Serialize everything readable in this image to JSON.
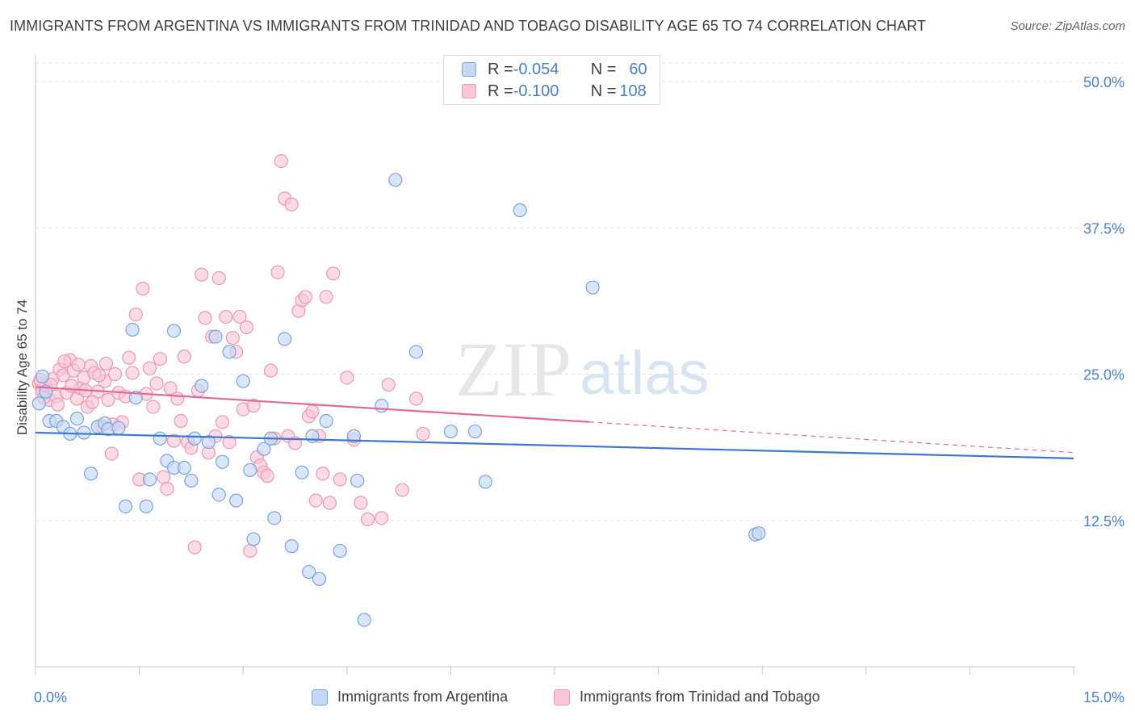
{
  "header": {
    "title": "IMMIGRANTS FROM ARGENTINA VS IMMIGRANTS FROM TRINIDAD AND TOBAGO DISABILITY AGE 65 TO 74 CORRELATION CHART",
    "source": "Source: ZipAtlas.com"
  },
  "watermark": {
    "zip": "ZIP",
    "atlas": "atlas"
  },
  "legend_top": {
    "rows": [
      {
        "r_label": "R = ",
        "r_value": "-0.054",
        "n_label": "N = ",
        "n_value": "60"
      },
      {
        "r_label": "R = ",
        "r_value": "-0.100",
        "n_label": "N = ",
        "n_value": "108"
      }
    ]
  },
  "colors": {
    "argentina_fill": "#c5d9f5",
    "argentina_stroke": "#7aa3dd",
    "argentina_line": "#3b78cf",
    "trinidad_fill": "#f8c8d8",
    "trinidad_stroke": "#ec97b4",
    "trinidad_line": "#e4688f",
    "tick_label": "#4a7fc7",
    "grid": "#dfe3e8"
  },
  "chart_data": {
    "type": "scatter",
    "title": "IMMIGRANTS FROM ARGENTINA VS IMMIGRANTS FROM TRINIDAD AND TOBAGO DISABILITY AGE 65 TO 74 CORRELATION CHART",
    "xlabel": "",
    "ylabel": "Disability Age 65 to 74",
    "xlim": [
      0,
      15
    ],
    "ylim": [
      0,
      52
    ],
    "x_tick_labels": [
      "0.0%",
      "15.0%"
    ],
    "y_ticks": [
      12.5,
      25.0,
      37.5,
      50.0
    ],
    "y_tick_labels": [
      "12.5%",
      "25.0%",
      "37.5%",
      "50.0%"
    ],
    "grid": "horizontal dashed",
    "legend_placement": "top-center",
    "series": [
      {
        "name": "Immigrants from Argentina",
        "r": -0.054,
        "n": 60,
        "trend": {
          "x": [
            0,
            15
          ],
          "y": [
            20.0,
            17.8
          ],
          "dashed_from": null
        },
        "points": [
          [
            0.05,
            22.5
          ],
          [
            0.2,
            21.0
          ],
          [
            0.3,
            21.0
          ],
          [
            0.4,
            20.5
          ],
          [
            0.5,
            19.9
          ],
          [
            0.6,
            21.2
          ],
          [
            0.7,
            20.0
          ],
          [
            0.8,
            16.5
          ],
          [
            0.9,
            20.5
          ],
          [
            1.0,
            20.8
          ],
          [
            1.05,
            20.3
          ],
          [
            1.2,
            20.4
          ],
          [
            1.3,
            13.7
          ],
          [
            1.4,
            28.8
          ],
          [
            1.45,
            23.0
          ],
          [
            1.6,
            13.7
          ],
          [
            1.65,
            16.0
          ],
          [
            1.8,
            19.5
          ],
          [
            1.9,
            17.6
          ],
          [
            2.0,
            17.0
          ],
          [
            2.0,
            28.7
          ],
          [
            2.15,
            17.0
          ],
          [
            2.25,
            15.9
          ],
          [
            2.3,
            19.5
          ],
          [
            2.4,
            24.0
          ],
          [
            2.5,
            19.2
          ],
          [
            2.6,
            28.2
          ],
          [
            2.65,
            14.7
          ],
          [
            2.7,
            17.5
          ],
          [
            2.8,
            26.9
          ],
          [
            2.9,
            14.2
          ],
          [
            3.0,
            24.4
          ],
          [
            3.1,
            16.8
          ],
          [
            3.15,
            10.9
          ],
          [
            3.3,
            18.6
          ],
          [
            3.4,
            19.5
          ],
          [
            3.45,
            12.7
          ],
          [
            3.6,
            28.0
          ],
          [
            3.7,
            10.3
          ],
          [
            3.85,
            16.6
          ],
          [
            3.95,
            8.1
          ],
          [
            4.0,
            19.7
          ],
          [
            4.1,
            7.5
          ],
          [
            4.2,
            21.0
          ],
          [
            4.4,
            9.9
          ],
          [
            4.6,
            19.7
          ],
          [
            4.65,
            15.9
          ],
          [
            4.75,
            4.0
          ],
          [
            5.0,
            22.3
          ],
          [
            5.2,
            41.6
          ],
          [
            5.5,
            26.9
          ],
          [
            6.0,
            20.1
          ],
          [
            6.35,
            20.1
          ],
          [
            6.5,
            15.8
          ],
          [
            7.0,
            39.0
          ],
          [
            8.05,
            32.4
          ],
          [
            10.4,
            11.3
          ],
          [
            10.45,
            11.4
          ],
          [
            0.1,
            24.8
          ],
          [
            0.15,
            23.5
          ]
        ]
      },
      {
        "name": "Immigrants from Trinidad and Tobago",
        "r": -0.1,
        "n": 108,
        "trend": {
          "x": [
            0,
            15
          ],
          "y": [
            23.9,
            18.3
          ],
          "dashed_from": 8.0
        },
        "points": [
          [
            0.05,
            24.2
          ],
          [
            0.1,
            23.5
          ],
          [
            0.15,
            24.0
          ],
          [
            0.2,
            22.8
          ],
          [
            0.25,
            24.6
          ],
          [
            0.3,
            23.1
          ],
          [
            0.35,
            25.4
          ],
          [
            0.4,
            24.9
          ],
          [
            0.45,
            23.4
          ],
          [
            0.5,
            26.2
          ],
          [
            0.55,
            25.3
          ],
          [
            0.6,
            22.9
          ],
          [
            0.65,
            23.8
          ],
          [
            0.7,
            24.7
          ],
          [
            0.75,
            22.2
          ],
          [
            0.8,
            25.7
          ],
          [
            0.85,
            25.1
          ],
          [
            0.9,
            23.5
          ],
          [
            0.95,
            20.6
          ],
          [
            1.0,
            24.4
          ],
          [
            1.05,
            22.8
          ],
          [
            1.1,
            18.2
          ],
          [
            1.15,
            25.0
          ],
          [
            1.2,
            23.4
          ],
          [
            1.25,
            20.9
          ],
          [
            1.3,
            23.1
          ],
          [
            1.35,
            26.4
          ],
          [
            1.4,
            25.1
          ],
          [
            1.45,
            30.1
          ],
          [
            1.5,
            16.0
          ],
          [
            1.55,
            32.3
          ],
          [
            1.6,
            23.3
          ],
          [
            1.65,
            25.5
          ],
          [
            1.7,
            22.2
          ],
          [
            1.75,
            24.2
          ],
          [
            1.8,
            26.3
          ],
          [
            1.85,
            16.2
          ],
          [
            1.9,
            15.2
          ],
          [
            1.95,
            23.8
          ],
          [
            2.0,
            19.3
          ],
          [
            2.05,
            22.9
          ],
          [
            2.1,
            21.0
          ],
          [
            2.15,
            26.5
          ],
          [
            2.2,
            19.2
          ],
          [
            2.25,
            18.7
          ],
          [
            2.3,
            10.2
          ],
          [
            2.35,
            23.6
          ],
          [
            2.4,
            33.5
          ],
          [
            2.45,
            29.8
          ],
          [
            2.5,
            18.3
          ],
          [
            2.55,
            28.2
          ],
          [
            2.6,
            19.7
          ],
          [
            2.65,
            33.2
          ],
          [
            2.7,
            20.9
          ],
          [
            2.75,
            29.9
          ],
          [
            2.8,
            19.2
          ],
          [
            2.85,
            28.1
          ],
          [
            2.9,
            26.9
          ],
          [
            2.95,
            29.9
          ],
          [
            3.0,
            22.0
          ],
          [
            3.05,
            29.0
          ],
          [
            3.1,
            9.9
          ],
          [
            3.15,
            22.3
          ],
          [
            3.2,
            17.9
          ],
          [
            3.25,
            17.2
          ],
          [
            3.3,
            16.6
          ],
          [
            3.35,
            16.3
          ],
          [
            3.4,
            25.3
          ],
          [
            3.45,
            19.5
          ],
          [
            3.5,
            33.7
          ],
          [
            3.55,
            43.2
          ],
          [
            3.6,
            40.0
          ],
          [
            3.65,
            19.7
          ],
          [
            3.7,
            39.5
          ],
          [
            3.75,
            19.1
          ],
          [
            3.8,
            30.4
          ],
          [
            3.85,
            31.3
          ],
          [
            3.9,
            31.6
          ],
          [
            3.95,
            21.4
          ],
          [
            4.0,
            21.8
          ],
          [
            4.05,
            14.2
          ],
          [
            4.1,
            19.7
          ],
          [
            4.15,
            16.5
          ],
          [
            4.2,
            31.6
          ],
          [
            4.25,
            14.0
          ],
          [
            4.3,
            33.6
          ],
          [
            4.4,
            16.0
          ],
          [
            4.5,
            24.7
          ],
          [
            4.6,
            19.4
          ],
          [
            4.7,
            14.0
          ],
          [
            4.8,
            12.6
          ],
          [
            5.0,
            12.7
          ],
          [
            5.1,
            24.1
          ],
          [
            5.3,
            15.1
          ],
          [
            5.5,
            22.9
          ],
          [
            5.6,
            19.9
          ],
          [
            0.07,
            24.5
          ],
          [
            0.12,
            23.0
          ],
          [
            0.22,
            24.1
          ],
          [
            0.32,
            22.4
          ],
          [
            0.42,
            26.1
          ],
          [
            0.52,
            24.0
          ],
          [
            0.62,
            25.8
          ],
          [
            0.72,
            23.6
          ],
          [
            0.82,
            22.6
          ],
          [
            0.92,
            24.9
          ],
          [
            1.02,
            25.9
          ],
          [
            1.12,
            20.7
          ]
        ]
      }
    ]
  },
  "legend_bottom": {
    "items": [
      {
        "label": "Immigrants from Argentina"
      },
      {
        "label": "Immigrants from Trinidad and Tobago"
      }
    ]
  }
}
